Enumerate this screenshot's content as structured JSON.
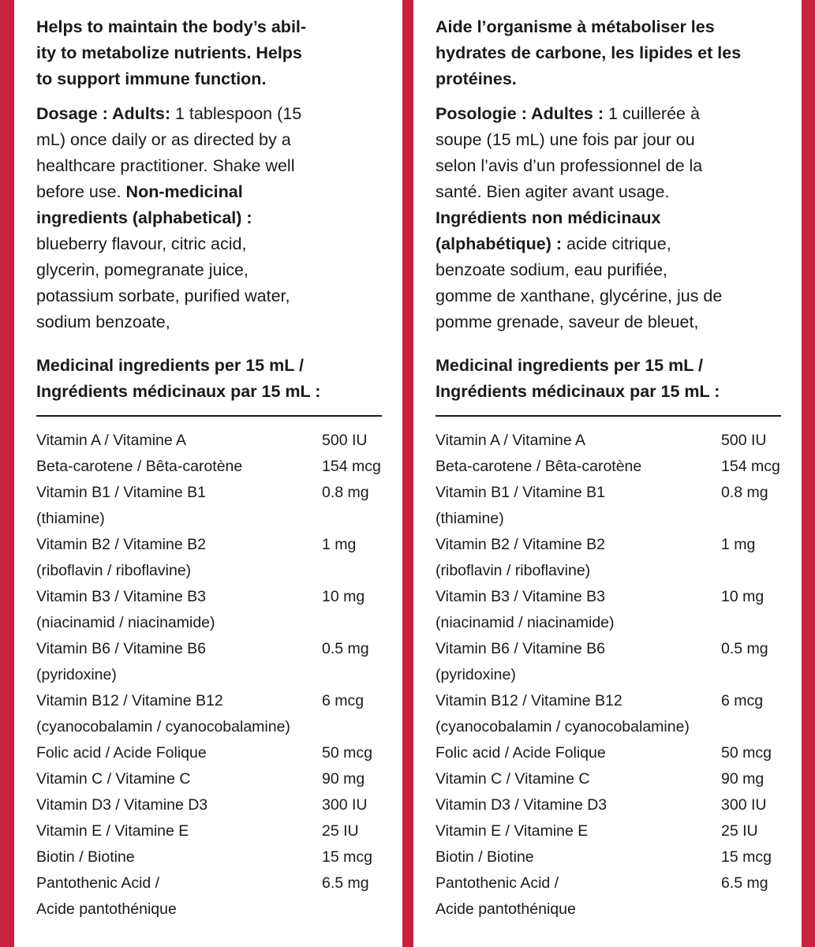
{
  "colors": {
    "border": "#c8213f",
    "text": "#1a1a1a"
  },
  "panels": [
    {
      "claim": [
        "Helps to maintain the body’s abil-",
        "ity to metabolize nutrients. Helps",
        "to support immune function."
      ],
      "dosage": [
        {
          "bold": "Dosage : Adults:",
          "text": " 1 tablespoon (15"
        },
        {
          "bold": "",
          "text": "mL) once daily or as directed by a"
        },
        {
          "bold": "",
          "text": "healthcare practitioner. Shake well"
        },
        {
          "bold": "",
          "text": "before use.   ",
          "bold2": "Non-medicinal"
        },
        {
          "bold": "ingredients (alphabetical) :",
          "text": ""
        },
        {
          "bold": "",
          "text": "blueberry flavour, citric acid,"
        },
        {
          "bold": "",
          "text": "glycerin, pomegranate juice,"
        },
        {
          "bold": "",
          "text": "potassium sorbate, purified water,"
        },
        {
          "bold": "",
          "text": "sodium benzoate,"
        }
      ],
      "heading": [
        "Medicinal ingredients per 15 mL /",
        "Ingrédients médicinaux par 15 mL :"
      ]
    },
    {
      "claim": [
        "Aide l’organisme à métaboliser les",
        "hydrates de carbone, les lipides et les",
        "protéines."
      ],
      "dosage": [
        {
          "bold": "Posologie : Adultes :",
          "text": " 1 cuillerée à"
        },
        {
          "bold": "",
          "text": "soupe (15 mL) une fois par jour ou"
        },
        {
          "bold": "",
          "text": "selon l’avis d’un professionnel de la"
        },
        {
          "bold": "",
          "text": "santé.  Bien agiter avant usage."
        },
        {
          "bold": "Ingrédients non médicinaux",
          "text": ""
        },
        {
          "bold": "(alphabétique) :",
          "text": " acide citrique,"
        },
        {
          "bold": "",
          "text": "benzoate sodium, eau purifiée,"
        },
        {
          "bold": "",
          "text": "gomme de xanthane, glycérine, jus de"
        },
        {
          "bold": "",
          "text": "pomme grenade, saveur de bleuet,"
        }
      ],
      "heading": [
        "Medicinal ingredients per 15 mL /",
        "Ingrédients médicinaux par 15 mL :"
      ]
    }
  ],
  "ingredients": [
    {
      "name": "Vitamin A / Vitamine A",
      "sub": "",
      "amount": "500 IU"
    },
    {
      "name": "Beta-carotene / Bêta-carotène",
      "sub": "",
      "amount": "154 mcg"
    },
    {
      "name": "Vitamin B1 / Vitamine B1",
      "sub": "(thiamine)",
      "amount": "0.8 mg"
    },
    {
      "name": "Vitamin B2 / Vitamine B2",
      "sub": "(riboflavin / riboflavine)",
      "amount": "1 mg"
    },
    {
      "name": "Vitamin B3 / Vitamine B3",
      "sub": "(niacinamid / niacinamide)",
      "amount": "10 mg"
    },
    {
      "name": "Vitamin B6 / Vitamine B6",
      "sub": "(pyridoxine)",
      "amount": "0.5 mg"
    },
    {
      "name": "Vitamin B12 / Vitamine B12",
      "sub": "(cyanocobalamin / cyanocobalamine)",
      "amount": "6 mcg"
    },
    {
      "name": "Folic acid / Acide Folique",
      "sub": "",
      "amount": "50 mcg"
    },
    {
      "name": "Vitamin C / Vitamine C",
      "sub": "",
      "amount": "90 mg"
    },
    {
      "name": "Vitamin D3 / Vitamine D3",
      "sub": "",
      "amount": "300 IU"
    },
    {
      "name": "Vitamin E  / Vitamine E",
      "sub": "",
      "amount": "25 IU"
    },
    {
      "name": "Biotin / Biotine",
      "sub": "",
      "amount": "15 mcg"
    },
    {
      "name": "Pantothenic Acid /",
      "sub": "Acide pantothénique",
      "amount": "6.5 mg"
    }
  ]
}
